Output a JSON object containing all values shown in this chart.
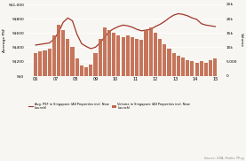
{
  "bar_color": "#C0674A",
  "line_color": "#A0362A",
  "bg_color": "#F8F6F2",
  "ylabel_left": "Average PSF",
  "ylabel_right": "Volume",
  "yticks_left_labels": [
    "S$0",
    "S$200",
    "S$400",
    "S$600",
    "S$800",
    "S$1,000"
  ],
  "yticks_left_vals": [
    0,
    200,
    400,
    600,
    800,
    1000
  ],
  "yticks_right_labels": [
    "0",
    "5,000",
    "10k",
    "15k",
    "20k",
    "25k"
  ],
  "yticks_right_vals": [
    0,
    5000,
    10000,
    15000,
    20000,
    25000
  ],
  "ylim_left": [
    0,
    1000
  ],
  "ylim_right": [
    0,
    25000
  ],
  "xtick_labels": [
    "06",
    "07",
    "08",
    "09",
    "10",
    "11",
    "12",
    "13",
    "14",
    "15"
  ],
  "legend_line": "Avg. PSF in Singapore (All Properties incl. New\nLaunch)",
  "legend_bar": "Volume in Singapore (All Properties incl. New\nLaunch)",
  "source_text": "Source: URA, Realis, PP.sg",
  "bar_heights": [
    8000,
    8500,
    9000,
    9500,
    14000,
    18000,
    16000,
    13000,
    10000,
    6000,
    3500,
    3000,
    4000,
    8000,
    13000,
    17000,
    16000,
    15000,
    14000,
    13500,
    14000,
    13500,
    13000,
    12500,
    16000,
    17000,
    15000,
    13000,
    11000,
    9500,
    8000,
    7000,
    6500,
    5500,
    5000,
    4500,
    5000,
    4500,
    5500,
    6000
  ],
  "line_psf": [
    430,
    440,
    450,
    460,
    510,
    610,
    750,
    810,
    770,
    580,
    450,
    410,
    380,
    400,
    460,
    540,
    620,
    660,
    690,
    710,
    700,
    680,
    650,
    630,
    640,
    650,
    690,
    720,
    760,
    810,
    850,
    870,
    860,
    840,
    810,
    790,
    730,
    710,
    700,
    690
  ]
}
